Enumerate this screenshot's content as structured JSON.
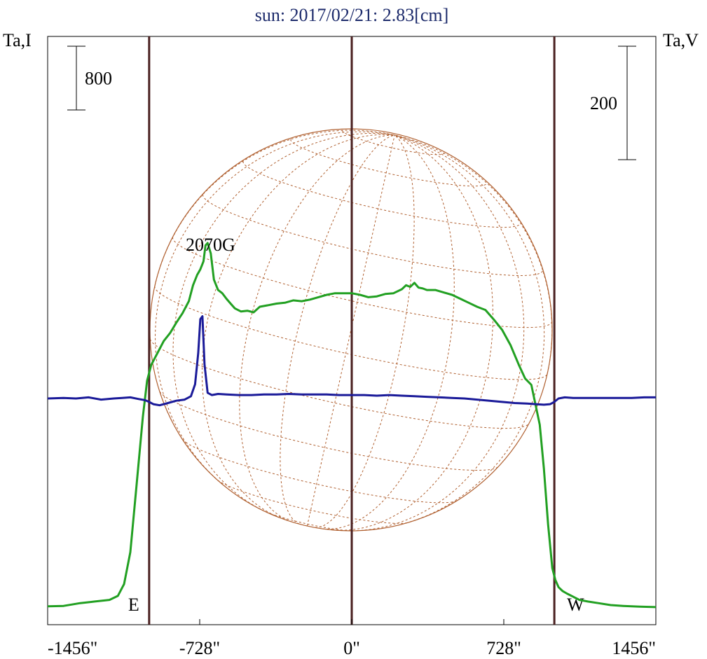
{
  "chart_data": {
    "type": "line",
    "title": "sun: 2017/02/21: 2.83[cm]",
    "ylabel_left": "Ta,I",
    "ylabel_right": "Ta,V",
    "xlim": [
      -1456,
      1456
    ],
    "x_ticks": [
      {
        "value": -1456,
        "label": "-1456\""
      },
      {
        "value": -728,
        "label": "-728\""
      },
      {
        "value": 0,
        "label": "0\""
      },
      {
        "value": 728,
        "label": "728\""
      },
      {
        "value": 1456,
        "label": "1456\""
      }
    ],
    "vertical_markers": [
      {
        "x": -970,
        "label": "E"
      },
      {
        "x": 0,
        "label": ""
      },
      {
        "x": 970,
        "label": "W"
      }
    ],
    "scale_bars": [
      {
        "axis": "left",
        "label": "800",
        "units": 800
      },
      {
        "axis": "right",
        "label": "200",
        "units": 200
      }
    ],
    "annotations": [
      {
        "text": "2070G",
        "x": -728
      }
    ],
    "series": [
      {
        "color": "#22a022",
        "axis": "left",
        "x": [
          -1456,
          -1380,
          -1300,
          -1230,
          -1160,
          -1120,
          -1090,
          -1060,
          -1030,
          -1000,
          -980,
          -960,
          -930,
          -900,
          -870,
          -840,
          -810,
          -780,
          -760,
          -740,
          -725,
          -710,
          -700,
          -690,
          -675,
          -660,
          -640,
          -620,
          -600,
          -580,
          -560,
          -530,
          -500,
          -470,
          -440,
          -400,
          -360,
          -320,
          -280,
          -240,
          -200,
          -160,
          -120,
          -80,
          -40,
          0,
          40,
          80,
          120,
          160,
          200,
          240,
          260,
          280,
          300,
          320,
          340,
          360,
          400,
          440,
          480,
          520,
          560,
          600,
          640,
          680,
          720,
          760,
          800,
          830,
          860,
          880,
          900,
          920,
          940,
          960,
          975,
          990,
          1010,
          1030,
          1060,
          1090,
          1130,
          1180,
          1240,
          1300,
          1380,
          1456
        ],
        "values": [
          20,
          25,
          60,
          80,
          100,
          150,
          300,
          700,
          1550,
          2400,
          2850,
          3050,
          3200,
          3350,
          3450,
          3580,
          3700,
          3850,
          4050,
          4180,
          4250,
          4350,
          4550,
          4580,
          4450,
          4120,
          3990,
          3950,
          3880,
          3820,
          3760,
          3720,
          3730,
          3710,
          3780,
          3800,
          3820,
          3830,
          3860,
          3850,
          3870,
          3900,
          3930,
          3950,
          3950,
          3950,
          3930,
          3900,
          3910,
          3940,
          3950,
          4000,
          4050,
          4030,
          4080,
          4020,
          4010,
          3990,
          3990,
          3960,
          3930,
          3880,
          3830,
          3780,
          3740,
          3620,
          3490,
          3300,
          3050,
          2880,
          2800,
          2550,
          2300,
          1750,
          1050,
          500,
          350,
          260,
          210,
          180,
          140,
          100,
          80,
          60,
          35,
          25,
          15,
          10
        ]
      },
      {
        "color": "#1a1a99",
        "axis": "right",
        "x": [
          -1456,
          -1380,
          -1320,
          -1260,
          -1200,
          -1140,
          -1100,
          -1060,
          -1020,
          -990,
          -970,
          -950,
          -920,
          -880,
          -840,
          -800,
          -770,
          -750,
          -735,
          -725,
          -715,
          -705,
          -690,
          -670,
          -640,
          -600,
          -540,
          -480,
          -420,
          -360,
          -300,
          -240,
          -180,
          -120,
          -60,
          0,
          60,
          120,
          180,
          240,
          300,
          360,
          420,
          480,
          540,
          600,
          660,
          720,
          780,
          840,
          880,
          920,
          950,
          970,
          990,
          1020,
          1060,
          1100,
          1160,
          1220,
          1280,
          1340,
          1400,
          1456
        ],
        "values": [
          0,
          1,
          0,
          2,
          -2,
          0,
          1,
          2,
          -1,
          -3,
          -6,
          -10,
          -12,
          -8,
          -4,
          -2,
          4,
          25,
          80,
          140,
          145,
          60,
          10,
          6,
          8,
          7,
          6,
          6,
          7,
          7,
          8,
          7,
          7,
          7,
          6,
          6,
          6,
          5,
          6,
          5,
          4,
          3,
          2,
          1,
          0,
          -2,
          -4,
          -6,
          -8,
          -9,
          -10,
          -11,
          -10,
          -6,
          0,
          2,
          1,
          1,
          1,
          1,
          1,
          1,
          2,
          2
        ]
      }
    ]
  }
}
